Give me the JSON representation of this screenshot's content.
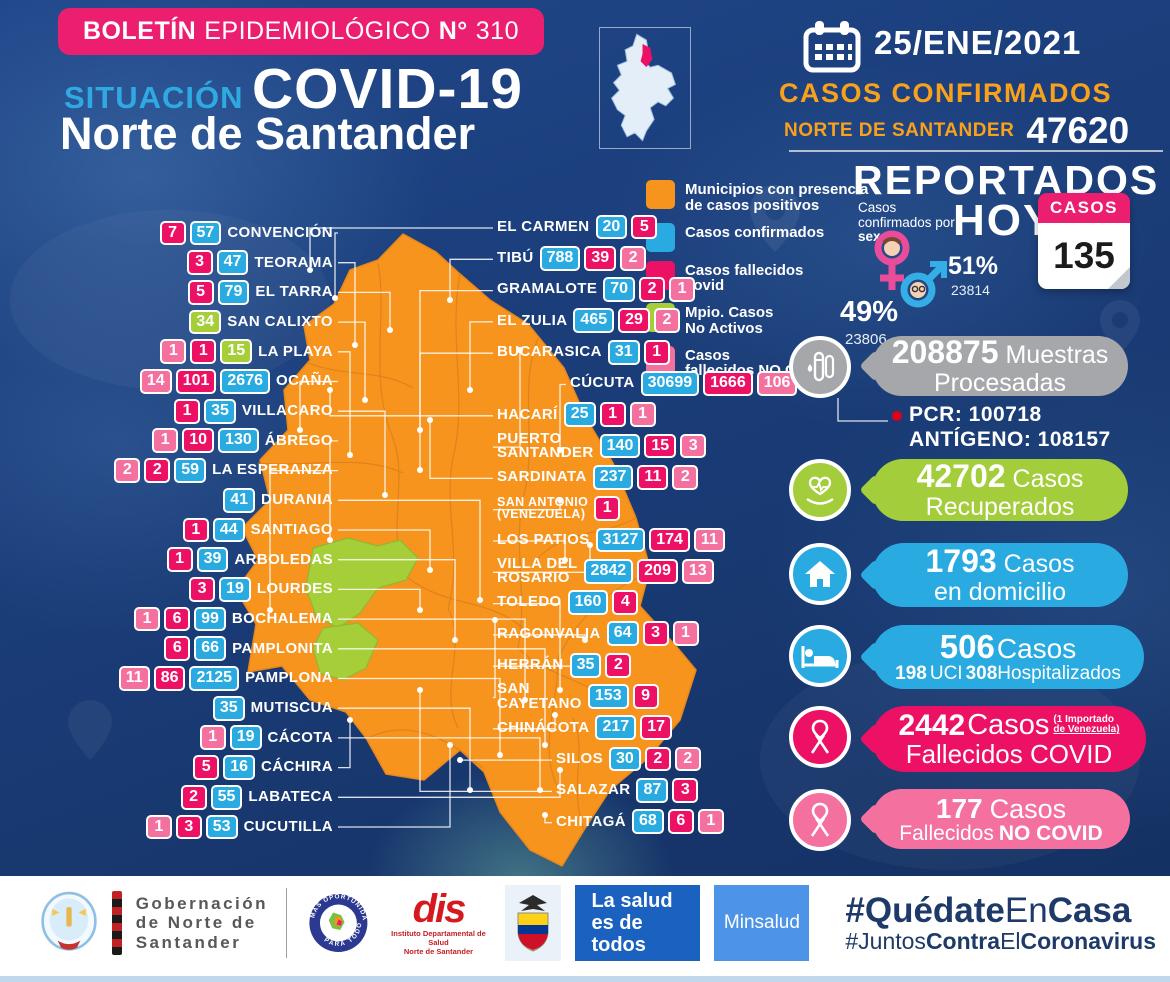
{
  "header": {
    "bulletin_b1": "BOLETÍN",
    "bulletin_r1": "EPIDEMIOLÓGICO",
    "bulletin_b2": "N°",
    "bulletin_r2": "310",
    "situacion": "SITUACIÓN",
    "covid": "COVID-19",
    "region": "Norte de Santander",
    "date": "25/ENE/2021",
    "confirmed_label": "CASOS CONFIRMADOS",
    "confirmed_region": "NORTE DE SANTANDER",
    "confirmed_total": "47620",
    "reported": "REPORTADOS",
    "hoy": "HOY",
    "sex_label_1": "Casos confirmados por ",
    "sex_label_2": "sexo:",
    "female_pct": "49%",
    "female_count": "23806",
    "male_pct": "51%",
    "male_count": "23814",
    "card_label": "CASOS",
    "card_value": "135"
  },
  "legend": {
    "items": [
      {
        "color": "municipios",
        "label": "Municipios con presencia\nde casos positivos"
      },
      {
        "color": "confirmados",
        "label": "Casos confirmados"
      },
      {
        "color": "fallecidos_covid",
        "label": "Casos fallecidos\ncovid"
      },
      {
        "color": "no_activos",
        "label": "Mpio. Casos\nNo Activos"
      },
      {
        "color": "fallecidos_no_covid",
        "label": "Casos\nfallecidos NO COVID"
      }
    ]
  },
  "map": {
    "left": [
      {
        "name": "CONVENCIÓN",
        "badges": [
          {
            "v": "7",
            "c": "fallecidos_covid"
          },
          {
            "v": "57",
            "c": "confirmados"
          }
        ]
      },
      {
        "name": "TEORAMA",
        "badges": [
          {
            "v": "3",
            "c": "fallecidos_covid"
          },
          {
            "v": "47",
            "c": "confirmados"
          }
        ]
      },
      {
        "name": "EL TARRA",
        "badges": [
          {
            "v": "5",
            "c": "fallecidos_covid"
          },
          {
            "v": "79",
            "c": "confirmados"
          }
        ]
      },
      {
        "name": "SAN CALIXTO",
        "badges": [
          {
            "v": "34",
            "c": "no_activos"
          }
        ]
      },
      {
        "name": "LA PLAYA",
        "badges": [
          {
            "v": "1",
            "c": "fallecidos_no_covid"
          },
          {
            "v": "1",
            "c": "fallecidos_covid"
          },
          {
            "v": "15",
            "c": "no_activos"
          }
        ]
      },
      {
        "name": "OCAÑA",
        "badges": [
          {
            "v": "14",
            "c": "fallecidos_no_covid"
          },
          {
            "v": "101",
            "c": "fallecidos_covid"
          },
          {
            "v": "2676",
            "c": "confirmados"
          }
        ]
      },
      {
        "name": "VILLACARO",
        "badges": [
          {
            "v": "1",
            "c": "fallecidos_covid"
          },
          {
            "v": "35",
            "c": "confirmados"
          }
        ]
      },
      {
        "name": "ÁBREGO",
        "badges": [
          {
            "v": "1",
            "c": "fallecidos_no_covid"
          },
          {
            "v": "10",
            "c": "fallecidos_covid"
          },
          {
            "v": "130",
            "c": "confirmados"
          }
        ]
      },
      {
        "name": "LA ESPERANZA",
        "badges": [
          {
            "v": "2",
            "c": "fallecidos_no_covid"
          },
          {
            "v": "2",
            "c": "fallecidos_covid"
          },
          {
            "v": "59",
            "c": "confirmados"
          }
        ]
      },
      {
        "name": "DURANIA",
        "badges": [
          {
            "v": "41",
            "c": "confirmados"
          }
        ]
      },
      {
        "name": "SANTIAGO",
        "badges": [
          {
            "v": "1",
            "c": "fallecidos_covid"
          },
          {
            "v": "44",
            "c": "confirmados"
          }
        ]
      },
      {
        "name": "ARBOLEDAS",
        "badges": [
          {
            "v": "1",
            "c": "fallecidos_covid"
          },
          {
            "v": "39",
            "c": "confirmados"
          }
        ]
      },
      {
        "name": "LOURDES",
        "badges": [
          {
            "v": "3",
            "c": "fallecidos_covid"
          },
          {
            "v": "19",
            "c": "confirmados"
          }
        ]
      },
      {
        "name": "BOCHALEMA",
        "badges": [
          {
            "v": "1",
            "c": "fallecidos_no_covid"
          },
          {
            "v": "6",
            "c": "fallecidos_covid"
          },
          {
            "v": "99",
            "c": "confirmados"
          }
        ]
      },
      {
        "name": "PAMPLONITA",
        "badges": [
          {
            "v": "6",
            "c": "fallecidos_covid"
          },
          {
            "v": "66",
            "c": "confirmados"
          }
        ]
      },
      {
        "name": "PAMPLONA",
        "badges": [
          {
            "v": "11",
            "c": "fallecidos_no_covid"
          },
          {
            "v": "86",
            "c": "fallecidos_covid"
          },
          {
            "v": "2125",
            "c": "confirmados"
          }
        ]
      },
      {
        "name": "MUTISCUA",
        "badges": [
          {
            "v": "35",
            "c": "confirmados"
          }
        ]
      },
      {
        "name": "CÁCOTA",
        "badges": [
          {
            "v": "1",
            "c": "fallecidos_no_covid"
          },
          {
            "v": "19",
            "c": "confirmados"
          }
        ]
      },
      {
        "name": "CÁCHIRA",
        "badges": [
          {
            "v": "5",
            "c": "fallecidos_covid"
          },
          {
            "v": "16",
            "c": "confirmados"
          }
        ]
      },
      {
        "name": "LABATECA",
        "badges": [
          {
            "v": "2",
            "c": "fallecidos_covid"
          },
          {
            "v": "55",
            "c": "confirmados"
          }
        ]
      },
      {
        "name": "CUCUTILLA",
        "badges": [
          {
            "v": "1",
            "c": "fallecidos_no_covid"
          },
          {
            "v": "3",
            "c": "fallecidos_covid"
          },
          {
            "v": "53",
            "c": "confirmados"
          }
        ]
      }
    ],
    "right": [
      {
        "name": "EL CARMEN",
        "badges": [
          {
            "v": "20",
            "c": "confirmados"
          },
          {
            "v": "5",
            "c": "fallecidos_covid"
          }
        ]
      },
      {
        "name": "TIBÚ",
        "badges": [
          {
            "v": "788",
            "c": "confirmados"
          },
          {
            "v": "39",
            "c": "fallecidos_covid"
          },
          {
            "v": "2",
            "c": "fallecidos_no_covid"
          }
        ]
      },
      {
        "name": "GRAMALOTE",
        "badges": [
          {
            "v": "70",
            "c": "confirmados"
          },
          {
            "v": "2",
            "c": "fallecidos_covid"
          },
          {
            "v": "1",
            "c": "fallecidos_no_covid"
          }
        ]
      },
      {
        "name": "EL ZULIA",
        "badges": [
          {
            "v": "465",
            "c": "confirmados"
          },
          {
            "v": "29",
            "c": "fallecidos_covid"
          },
          {
            "v": "2",
            "c": "fallecidos_no_covid"
          }
        ]
      },
      {
        "name": "BUCARASICA",
        "badges": [
          {
            "v": "31",
            "c": "confirmados"
          },
          {
            "v": "1",
            "c": "fallecidos_covid"
          }
        ]
      },
      {
        "name": "CÚCUTA",
        "badges": [
          {
            "v": "30699",
            "c": "confirmados"
          },
          {
            "v": "1666",
            "c": "fallecidos_covid"
          },
          {
            "v": "106",
            "c": "fallecidos_no_covid"
          }
        ]
      },
      {
        "name": "HACARÍ",
        "badges": [
          {
            "v": "25",
            "c": "confirmados"
          },
          {
            "v": "1",
            "c": "fallecidos_covid"
          },
          {
            "v": "1",
            "c": "fallecidos_no_covid"
          }
        ]
      },
      {
        "name": "PUERTO\nSANTANDER",
        "badges": [
          {
            "v": "140",
            "c": "confirmados"
          },
          {
            "v": "15",
            "c": "fallecidos_covid"
          },
          {
            "v": "3",
            "c": "fallecidos_no_covid"
          }
        ]
      },
      {
        "name": "SARDINATA",
        "badges": [
          {
            "v": "237",
            "c": "confirmados"
          },
          {
            "v": "11",
            "c": "fallecidos_covid"
          },
          {
            "v": "2",
            "c": "fallecidos_no_covid"
          }
        ]
      },
      {
        "name": "SAN ANTONIO\n(VENEZUELA)",
        "badges": [
          {
            "v": "1",
            "c": "fallecidos_covid"
          }
        ]
      },
      {
        "name": "LOS PATIOS",
        "badges": [
          {
            "v": "3127",
            "c": "confirmados"
          },
          {
            "v": "174",
            "c": "fallecidos_covid"
          },
          {
            "v": "11",
            "c": "fallecidos_no_covid"
          }
        ]
      },
      {
        "name": "VILLA DEL\nROSARIO",
        "badges": [
          {
            "v": "2842",
            "c": "confirmados"
          },
          {
            "v": "209",
            "c": "fallecidos_covid"
          },
          {
            "v": "13",
            "c": "fallecidos_no_covid"
          }
        ]
      },
      {
        "name": "TOLEDO",
        "badges": [
          {
            "v": "160",
            "c": "confirmados"
          },
          {
            "v": "4",
            "c": "fallecidos_covid"
          }
        ]
      },
      {
        "name": "RAGONVALIA",
        "badges": [
          {
            "v": "64",
            "c": "confirmados"
          },
          {
            "v": "3",
            "c": "fallecidos_covid"
          },
          {
            "v": "1",
            "c": "fallecidos_no_covid"
          }
        ]
      },
      {
        "name": "HERRÁN",
        "badges": [
          {
            "v": "35",
            "c": "confirmados"
          },
          {
            "v": "2",
            "c": "fallecidos_covid"
          }
        ]
      },
      {
        "name": "SAN\nCAYETANO",
        "badges": [
          {
            "v": "153",
            "c": "confirmados"
          },
          {
            "v": "9",
            "c": "fallecidos_covid"
          }
        ]
      },
      {
        "name": "CHINÁCOTA",
        "badges": [
          {
            "v": "217",
            "c": "confirmados"
          },
          {
            "v": "17",
            "c": "fallecidos_covid"
          }
        ]
      },
      {
        "name": "SILOS",
        "badges": [
          {
            "v": "30",
            "c": "confirmados"
          },
          {
            "v": "2",
            "c": "fallecidos_covid"
          },
          {
            "v": "2",
            "c": "fallecidos_no_covid"
          }
        ]
      },
      {
        "name": "SALAZAR",
        "badges": [
          {
            "v": "87",
            "c": "confirmados"
          },
          {
            "v": "3",
            "c": "fallecidos_covid"
          }
        ]
      },
      {
        "name": "CHITAGÁ",
        "badges": [
          {
            "v": "68",
            "c": "confirmados"
          },
          {
            "v": "6",
            "c": "fallecidos_covid"
          },
          {
            "v": "1",
            "c": "fallecidos_no_covid"
          }
        ]
      }
    ]
  },
  "stats": {
    "muestras": {
      "value": "208875",
      "l1": "Muestras",
      "l2": "Procesadas"
    },
    "pcr": "PCR: 100718",
    "antigeno": "ANTÍGENO: 108157",
    "recuperados": {
      "value": "42702",
      "l1": "Casos",
      "l2": "Recuperados"
    },
    "domicilio": {
      "value": "1793",
      "l1": "Casos",
      "l2": "en domicilio"
    },
    "hospital": {
      "value": "506",
      "l1": "Casos",
      "uci_n": "198",
      "uci_l": "UCI",
      "hosp_n": "308",
      "hosp_l": "Hospitalizados"
    },
    "fallecidos_covid": {
      "value": "2442",
      "l1": "Casos",
      "note1": "(1 Importado",
      "note2": "de Venezuela)",
      "l2": "Fallecidos COVID"
    },
    "fallecidos_no_covid": {
      "value": "177",
      "l1": "Casos",
      "l2a": "Fallecidos",
      "l2b": "NO COVID"
    }
  },
  "footer": {
    "gobernacion": "Gobernación\nde Norte de\nSantander",
    "para_todos_top": "MÁS OPORTUNIDADES",
    "para_todos_bottom": "PARA TODOS",
    "ids_logo": "dis",
    "ids_caption": "Instituto Departamental de Salud\nNorte de Santander",
    "salud": "La salud\nes de todos",
    "minsalud": "Minsalud",
    "hash1": {
      "p1": "#Quédate",
      "p2": "En",
      "p3": "Casa"
    },
    "hash2": {
      "p1": "#Juntos",
      "p2": "Contra",
      "p3": "El",
      "p4": "Coronavirus"
    }
  },
  "colors": {
    "municipios": "#F7941D",
    "confirmados": "#29ABE2",
    "fallecidos_covid": "#EC1164",
    "fallecidos_no_covid": "#F4719F",
    "no_activos": "#A6CE39",
    "banner_pink": "#EC1E6F",
    "accent_blue": "#2FA9E1",
    "accent_orange": "#F9A11B",
    "background_navy": "#1a3c77",
    "hashtag_navy": "#1E3A68"
  }
}
